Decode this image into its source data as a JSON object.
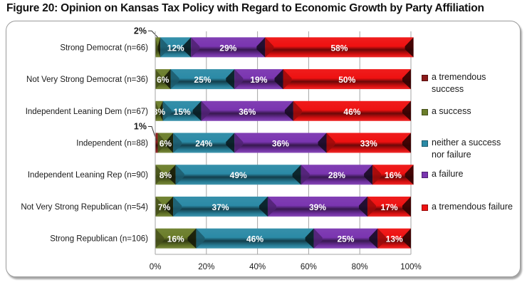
{
  "chart_data": {
    "type": "bar",
    "orientation": "horizontal",
    "stacked": "percent",
    "title": "Figure 20: Opinion on Kansas Tax Policy with Regard to Economic Growth by Party Affiliation",
    "xlabel": "",
    "ylabel": "",
    "xlim": [
      0,
      100
    ],
    "x_ticks": [
      "0%",
      "20%",
      "40%",
      "60%",
      "80%",
      "100%"
    ],
    "grid": true,
    "legend_position": "right",
    "categories": [
      "Strong Democrat (n=66)",
      "Not Very Strong Democrat (n=36)",
      "Independent Leaning Dem (n=67)",
      "Independent (n=88)",
      "Independent Leaning Rep (n=90)",
      "Not Very Strong Republican (n=54)",
      "Strong Republican (n=106)"
    ],
    "series": [
      {
        "name": "a tremendous success",
        "color": "#8b1a1a",
        "values": [
          0,
          0,
          0,
          1,
          0,
          0,
          0
        ],
        "labels": [
          "",
          "",
          "",
          "1%",
          "",
          "",
          ""
        ]
      },
      {
        "name": "a success",
        "color": "#6b7d2a",
        "values": [
          2,
          6,
          3,
          6,
          8,
          7,
          16
        ],
        "labels": [
          "2%",
          "6%",
          "3%",
          "6%",
          "8%",
          "7%",
          "16%"
        ]
      },
      {
        "name": "neither a success nor failure",
        "color": "#2b8aa6",
        "values": [
          12,
          25,
          15,
          24,
          49,
          37,
          46
        ],
        "labels": [
          "12%",
          "25%",
          "15%",
          "24%",
          "49%",
          "37%",
          "46%"
        ]
      },
      {
        "name": "a failure",
        "color": "#7a35b0",
        "values": [
          29,
          19,
          36,
          36,
          28,
          39,
          25
        ],
        "labels": [
          "29%",
          "19%",
          "36%",
          "36%",
          "28%",
          "39%",
          "25%"
        ]
      },
      {
        "name": "a tremendous failure",
        "color": "#ee1111",
        "values": [
          58,
          50,
          46,
          33,
          16,
          17,
          13
        ],
        "labels": [
          "58%",
          "50%",
          "46%",
          "33%",
          "16%",
          "17%",
          "13%"
        ]
      }
    ],
    "callouts": [
      {
        "category_index": 0,
        "series_index": 1,
        "text": "2%"
      },
      {
        "category_index": 3,
        "series_index": 0,
        "text": "1%"
      }
    ]
  },
  "legend": {
    "items": [
      {
        "label": "a tremendous success",
        "color": "#8b1a1a"
      },
      {
        "label": "a success",
        "color": "#6b7d2a"
      },
      {
        "label": "neither a success nor failure",
        "color": "#2b8aa6"
      },
      {
        "label": "a failure",
        "color": "#7a35b0"
      },
      {
        "label": "a tremendous failure",
        "color": "#ee1111"
      }
    ]
  }
}
